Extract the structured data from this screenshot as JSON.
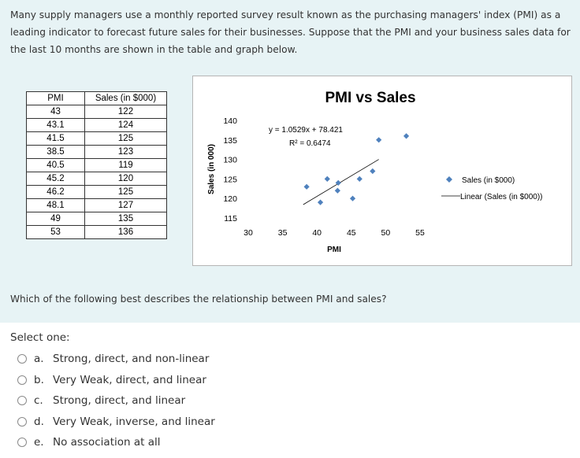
{
  "question": {
    "intro": "Many supply managers use a monthly reported survey result known as the purchasing managers' index (PMI) as a leading indicator to forecast future sales for their businesses. Suppose that the PMI and your business sales data for the last 10 months are shown in the table and graph below.",
    "prompt": "Which of the following best describes the relationship between PMI and sales?"
  },
  "table": {
    "headers": [
      "PMI",
      "Sales (in $000)"
    ],
    "rows": [
      [
        "43",
        "122"
      ],
      [
        "43.1",
        "124"
      ],
      [
        "41.5",
        "125"
      ],
      [
        "38.5",
        "123"
      ],
      [
        "40.5",
        "119"
      ],
      [
        "45.2",
        "120"
      ],
      [
        "46.2",
        "125"
      ],
      [
        "48.1",
        "127"
      ],
      [
        "49",
        "135"
      ],
      [
        "53",
        "136"
      ]
    ]
  },
  "chart_data": {
    "type": "scatter",
    "title": "PMI vs Sales",
    "xlabel": "PMI",
    "ylabel": "Sales (in 000)",
    "xlim": [
      30,
      55
    ],
    "ylim": [
      115,
      140
    ],
    "xticks": [
      30,
      35,
      40,
      45,
      50,
      55
    ],
    "yticks": [
      115,
      120,
      125,
      130,
      135,
      140
    ],
    "grid": false,
    "legend_position": "right",
    "series": [
      {
        "name": "Sales (in $000)",
        "color": "#4f81bd",
        "marker": "diamond",
        "points": [
          [
            43,
            122
          ],
          [
            43.1,
            124
          ],
          [
            41.5,
            125
          ],
          [
            38.5,
            123
          ],
          [
            40.5,
            119
          ],
          [
            45.2,
            120
          ],
          [
            46.2,
            125
          ],
          [
            48.1,
            127
          ],
          [
            49,
            135
          ],
          [
            53,
            136
          ]
        ]
      }
    ],
    "trendline": {
      "name": "Linear (Sales (in $000))",
      "color": "#000000",
      "slope": 1.0529,
      "intercept": 78.421,
      "x_range": [
        38,
        49
      ]
    },
    "equation": "y = 1.0529x + 78.421",
    "r_squared": "R² = 0.6474"
  },
  "answer": {
    "select_label": "Select one:",
    "options": [
      {
        "letter": "a.",
        "text": "Strong, direct, and non-linear"
      },
      {
        "letter": "b.",
        "text": "Very Weak, direct, and linear"
      },
      {
        "letter": "c.",
        "text": "Strong, direct, and linear"
      },
      {
        "letter": "d.",
        "text": "Very Weak, inverse, and linear"
      },
      {
        "letter": "e.",
        "text": "No association at all"
      }
    ]
  }
}
